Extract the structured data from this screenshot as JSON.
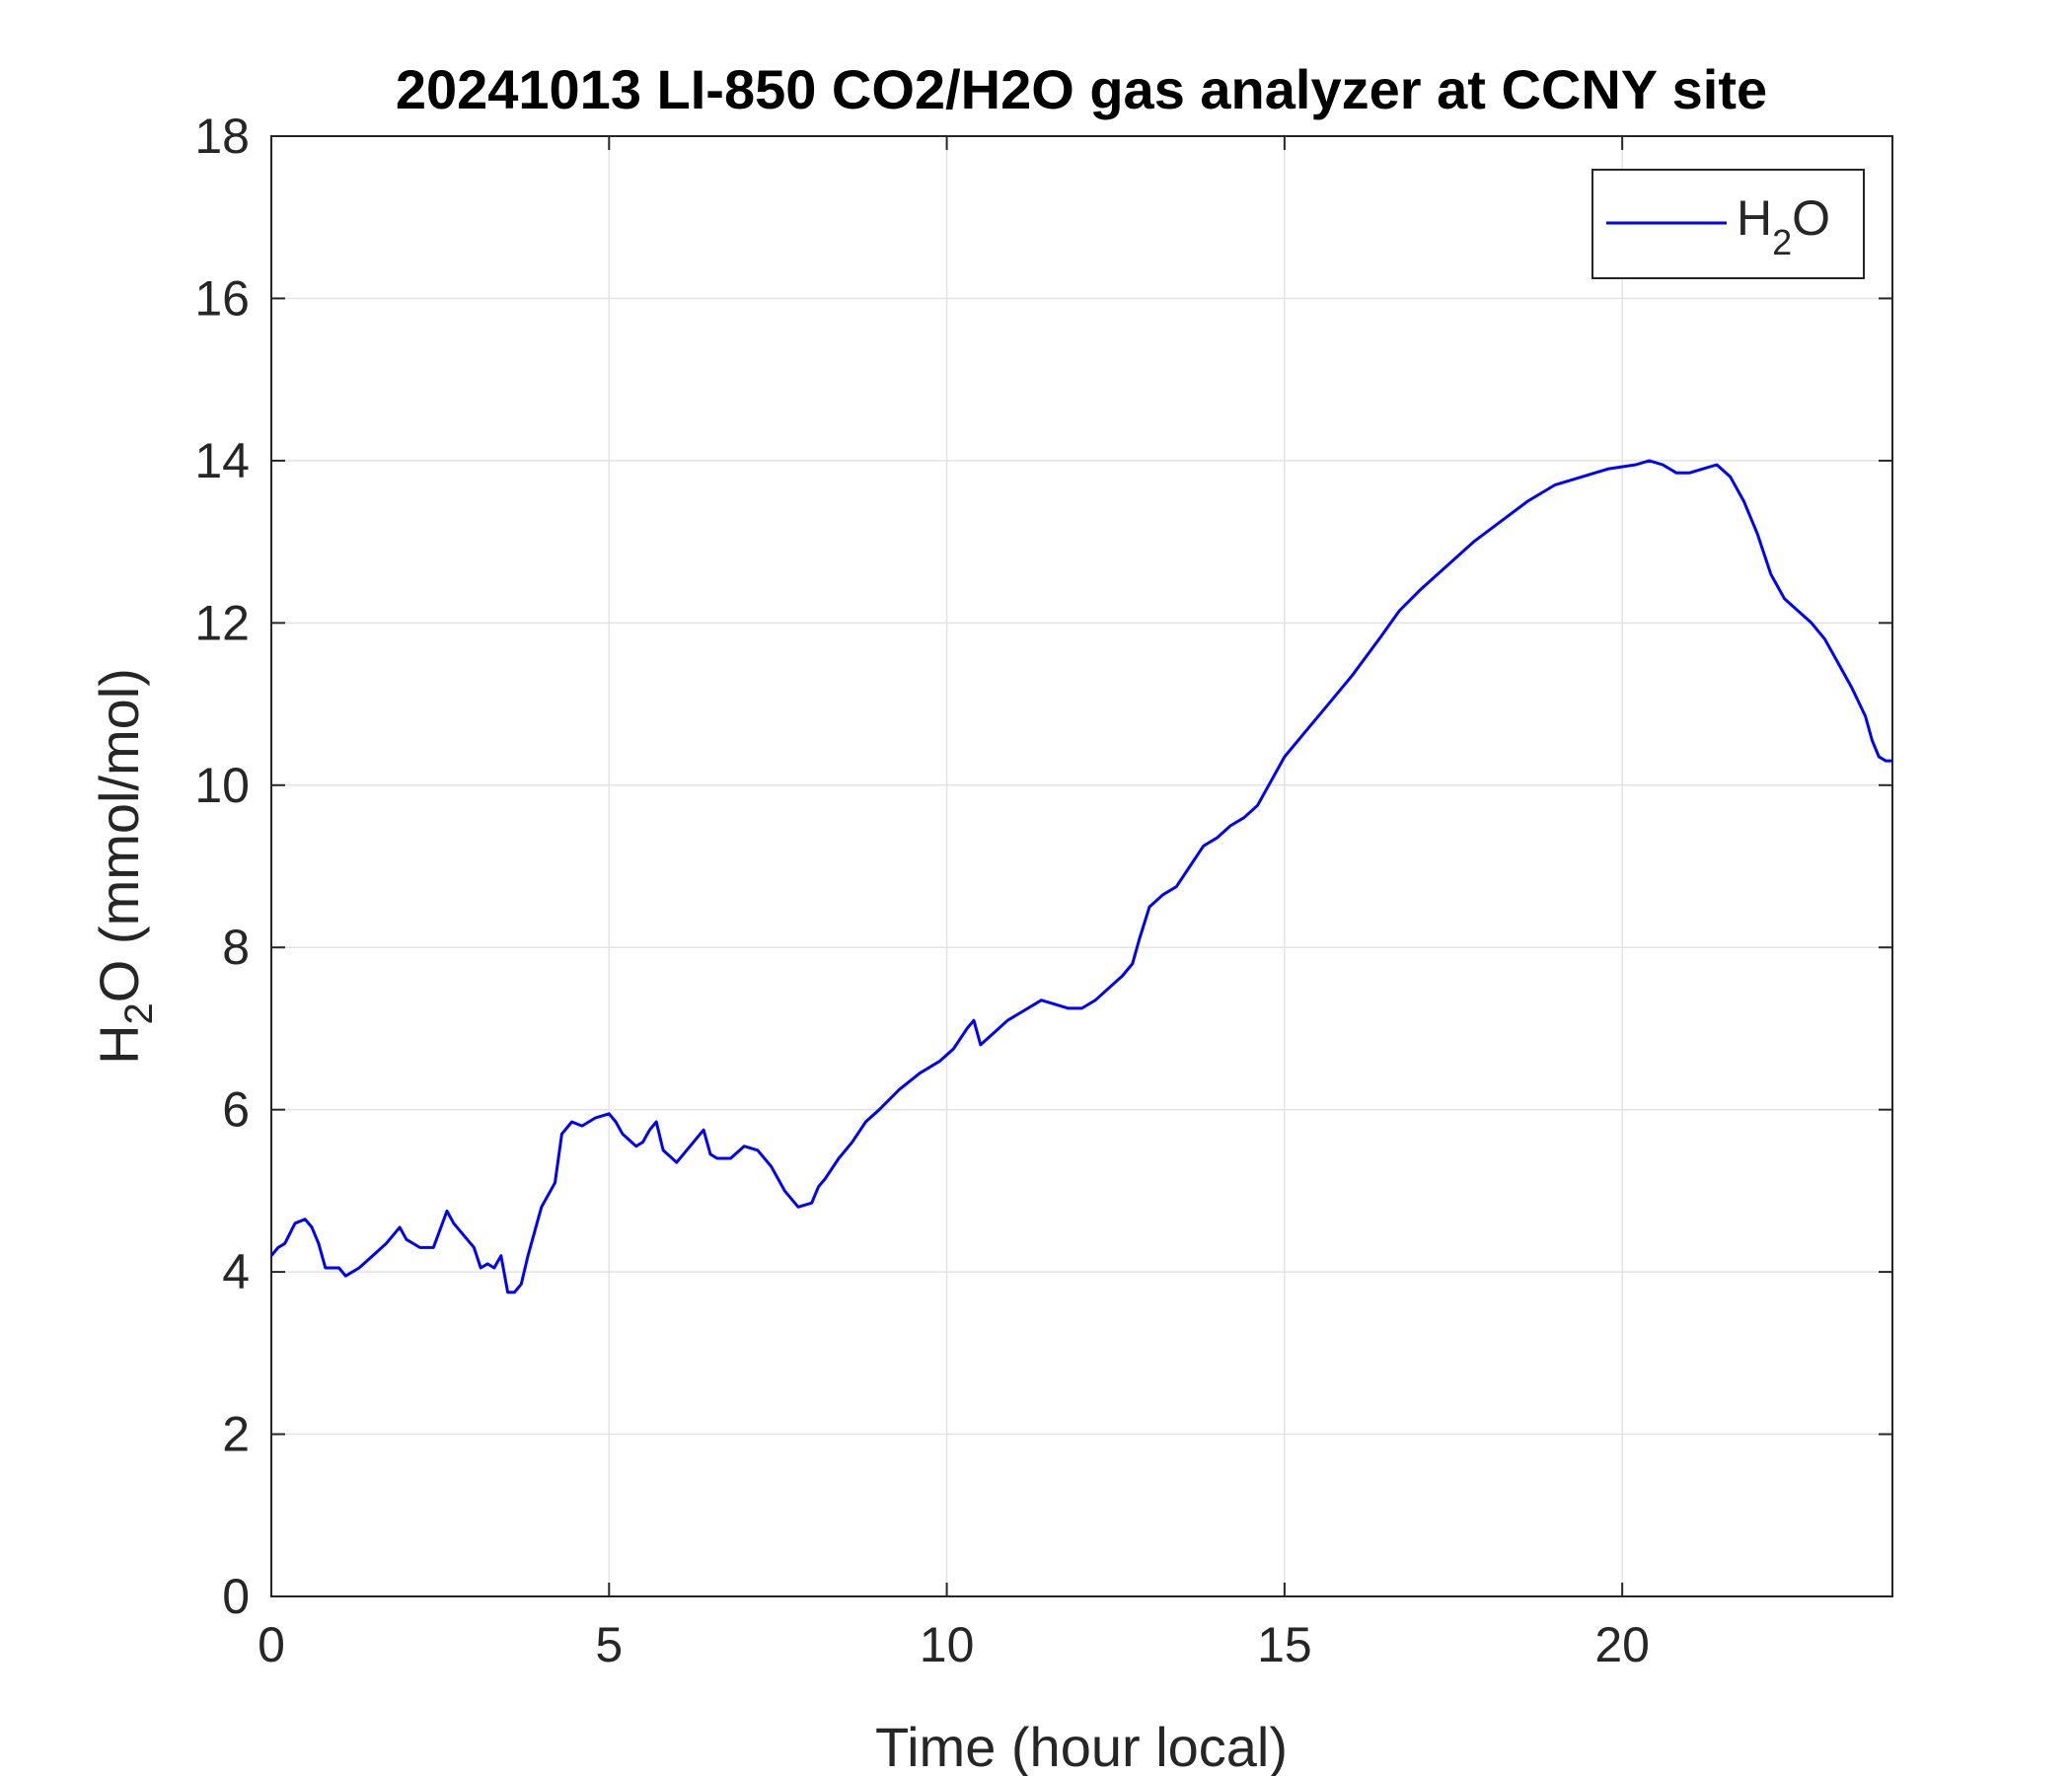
{
  "chart_data": {
    "type": "line",
    "title": "20241013 LI-850 CO2/H2O gas analyzer at CCNY site",
    "xlabel": "Time (hour local)",
    "ylabel": "H2O (mmol/mol)",
    "ylabel_parts": {
      "base": "H",
      "sub": "2",
      "rest": "O (mmol/mol)"
    },
    "xlim": [
      0,
      24
    ],
    "ylim": [
      0,
      18
    ],
    "xticks": [
      0,
      5,
      10,
      15,
      20
    ],
    "yticks": [
      0,
      2,
      4,
      6,
      8,
      10,
      12,
      14,
      16,
      18
    ],
    "grid": true,
    "legend_position": "top-right",
    "series": [
      {
        "name": "H2O",
        "name_parts": {
          "base": "H",
          "sub": "2",
          "rest": "O"
        },
        "color": "#0000ff",
        "x": [
          0.0,
          0.1,
          0.2,
          0.35,
          0.5,
          0.6,
          0.7,
          0.8,
          1.0,
          1.1,
          1.3,
          1.5,
          1.7,
          1.9,
          2.0,
          2.2,
          2.4,
          2.6,
          2.7,
          2.9,
          3.0,
          3.1,
          3.2,
          3.3,
          3.4,
          3.5,
          3.6,
          3.7,
          3.8,
          4.0,
          4.2,
          4.3,
          4.45,
          4.6,
          4.8,
          5.0,
          5.1,
          5.2,
          5.4,
          5.5,
          5.6,
          5.7,
          5.8,
          6.0,
          6.2,
          6.4,
          6.5,
          6.6,
          6.8,
          7.0,
          7.2,
          7.4,
          7.6,
          7.8,
          8.0,
          8.1,
          8.2,
          8.4,
          8.6,
          8.8,
          9.0,
          9.3,
          9.6,
          9.9,
          10.1,
          10.3,
          10.4,
          10.5,
          10.7,
          10.9,
          11.1,
          11.3,
          11.4,
          11.6,
          11.8,
          12.0,
          12.2,
          12.4,
          12.6,
          12.75,
          12.85,
          13.0,
          13.2,
          13.4,
          13.6,
          13.8,
          14.0,
          14.2,
          14.4,
          14.6,
          14.8,
          15.0,
          15.3,
          15.6,
          16.0,
          16.4,
          16.7,
          17.0,
          17.4,
          17.8,
          18.2,
          18.6,
          19.0,
          19.4,
          19.8,
          20.2,
          20.4,
          20.6,
          20.8,
          21.0,
          21.2,
          21.4,
          21.6,
          21.8,
          22.0,
          22.2,
          22.4,
          22.6,
          22.8,
          23.0,
          23.2,
          23.4,
          23.6,
          23.7,
          23.8,
          23.9,
          24.0
        ],
        "values": [
          4.2,
          4.3,
          4.35,
          4.6,
          4.65,
          4.55,
          4.35,
          4.05,
          4.05,
          3.95,
          4.05,
          4.2,
          4.35,
          4.55,
          4.4,
          4.3,
          4.3,
          4.75,
          4.6,
          4.4,
          4.3,
          4.05,
          4.1,
          4.05,
          4.2,
          3.75,
          3.75,
          3.85,
          4.2,
          4.8,
          5.1,
          5.7,
          5.85,
          5.8,
          5.9,
          5.95,
          5.85,
          5.7,
          5.55,
          5.6,
          5.75,
          5.85,
          5.5,
          5.35,
          5.55,
          5.75,
          5.45,
          5.4,
          5.4,
          5.55,
          5.5,
          5.3,
          5.0,
          4.8,
          4.85,
          5.05,
          5.15,
          5.4,
          5.6,
          5.85,
          6.0,
          6.25,
          6.45,
          6.6,
          6.75,
          7.0,
          7.1,
          6.8,
          6.95,
          7.1,
          7.2,
          7.3,
          7.35,
          7.3,
          7.25,
          7.25,
          7.35,
          7.5,
          7.65,
          7.8,
          8.1,
          8.5,
          8.65,
          8.75,
          9.0,
          9.25,
          9.35,
          9.5,
          9.6,
          9.75,
          10.05,
          10.35,
          10.65,
          10.95,
          11.35,
          11.8,
          12.15,
          12.4,
          12.7,
          13.0,
          13.25,
          13.5,
          13.7,
          13.8,
          13.9,
          13.95,
          14.0,
          13.95,
          13.85,
          13.85,
          13.9,
          13.95,
          13.8,
          13.5,
          13.1,
          12.6,
          12.3,
          12.15,
          12.0,
          11.8,
          11.5,
          11.2,
          10.85,
          10.55,
          10.35,
          10.3,
          10.3
        ]
      }
    ]
  }
}
